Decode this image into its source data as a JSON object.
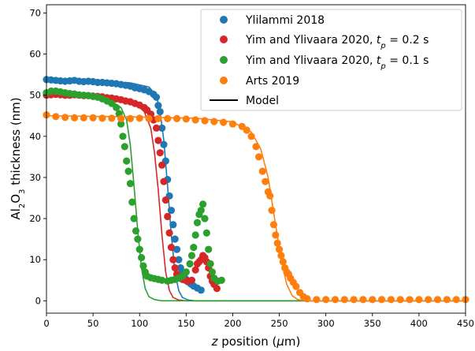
{
  "chart_data": {
    "type": "scatter",
    "x_label_parts": [
      "z",
      " position (",
      "μ",
      "m)"
    ],
    "y_label_parts": [
      "Al",
      "2",
      "O",
      "3",
      " thickness (nm)"
    ],
    "xlim": [
      0,
      450
    ],
    "ylim": [
      -3,
      72
    ],
    "x_ticks": [
      0,
      50,
      100,
      150,
      200,
      250,
      300,
      350,
      400,
      450
    ],
    "y_ticks": [
      0,
      10,
      20,
      30,
      40,
      50,
      60,
      70
    ],
    "grid": false,
    "legend_position": "top-right",
    "legend": [
      {
        "text": "Ylilammi 2018",
        "marker": "dot",
        "color": "#1f77b4"
      },
      {
        "text": "Yim and Ylivaara 2020, ",
        "math_var": "t",
        "math_sub": "p",
        "math_rest": " = 0.2 s",
        "marker": "dot",
        "color": "#d62728"
      },
      {
        "text": "Yim and Ylivaara 2020, ",
        "math_var": "t",
        "math_sub": "p",
        "math_rest": " = 0.1 s",
        "marker": "dot",
        "color": "#2ca02c"
      },
      {
        "text": "Arts 2019",
        "marker": "dot",
        "color": "#ff7f0e"
      },
      {
        "text": "Model",
        "marker": "line",
        "color": "#000000"
      }
    ],
    "series": [
      {
        "name": "Ylilammi 2018",
        "color": "#1f77b4",
        "points": [
          [
            0,
            53.8
          ],
          [
            5,
            53.7
          ],
          [
            10,
            53.6
          ],
          [
            15,
            53.5
          ],
          [
            20,
            53.4
          ],
          [
            25,
            53.5
          ],
          [
            30,
            53.6
          ],
          [
            35,
            53.4
          ],
          [
            40,
            53.3
          ],
          [
            45,
            53.4
          ],
          [
            50,
            53.3
          ],
          [
            55,
            53.1
          ],
          [
            60,
            53.1
          ],
          [
            65,
            53.0
          ],
          [
            70,
            52.9
          ],
          [
            75,
            52.8
          ],
          [
            80,
            52.6
          ],
          [
            85,
            52.4
          ],
          [
            90,
            52.2
          ],
          [
            95,
            51.8
          ],
          [
            100,
            51.6
          ],
          [
            105,
            51.3
          ],
          [
            110,
            50.9
          ],
          [
            115,
            50.2
          ],
          [
            118,
            49.5
          ],
          [
            120,
            47.5
          ],
          [
            122,
            46.0
          ],
          [
            124,
            42.0
          ],
          [
            126,
            38.0
          ],
          [
            128,
            34.0
          ],
          [
            130,
            29.5
          ],
          [
            132,
            25.5
          ],
          [
            134,
            22.0
          ],
          [
            136,
            18.5
          ],
          [
            138,
            15.0
          ],
          [
            140,
            12.5
          ],
          [
            142,
            10.0
          ],
          [
            144,
            8.0
          ],
          [
            146,
            6.8
          ],
          [
            148,
            5.8
          ],
          [
            150,
            5.2
          ],
          [
            152,
            4.6
          ],
          [
            155,
            4.1
          ],
          [
            158,
            3.6
          ],
          [
            162,
            3.1
          ],
          [
            166,
            2.6
          ]
        ],
        "model": [
          [
            0,
            53.8
          ],
          [
            50,
            53.6
          ],
          [
            90,
            53.0
          ],
          [
            110,
            52.0
          ],
          [
            118,
            50.0
          ],
          [
            122,
            46.0
          ],
          [
            126,
            39.0
          ],
          [
            130,
            28.0
          ],
          [
            134,
            16.0
          ],
          [
            138,
            7.0
          ],
          [
            142,
            2.5
          ],
          [
            146,
            0.8
          ],
          [
            152,
            0.2
          ],
          [
            160,
            0
          ],
          [
            450,
            0
          ]
        ]
      },
      {
        "name": "Yim and Ylivaara 2020, tp = 0.2 s",
        "color": "#d62728",
        "points": [
          [
            0,
            50.0
          ],
          [
            5,
            50.1
          ],
          [
            10,
            50.2
          ],
          [
            15,
            50.1
          ],
          [
            20,
            50.0
          ],
          [
            25,
            50.0
          ],
          [
            30,
            50.1
          ],
          [
            35,
            50.0
          ],
          [
            40,
            49.9
          ],
          [
            45,
            49.9
          ],
          [
            50,
            49.8
          ],
          [
            55,
            49.7
          ],
          [
            60,
            49.6
          ],
          [
            65,
            49.4
          ],
          [
            70,
            49.3
          ],
          [
            75,
            49.1
          ],
          [
            80,
            48.9
          ],
          [
            85,
            48.6
          ],
          [
            90,
            48.4
          ],
          [
            95,
            48.0
          ],
          [
            100,
            47.6
          ],
          [
            105,
            47.0
          ],
          [
            108,
            46.4
          ],
          [
            112,
            45.4
          ],
          [
            115,
            44.0
          ],
          [
            118,
            42.0
          ],
          [
            120,
            39.0
          ],
          [
            122,
            36.0
          ],
          [
            124,
            33.0
          ],
          [
            126,
            29.0
          ],
          [
            128,
            24.5
          ],
          [
            130,
            20.5
          ],
          [
            132,
            16.5
          ],
          [
            134,
            13.0
          ],
          [
            136,
            10.0
          ],
          [
            138,
            8.0
          ],
          [
            140,
            6.5
          ],
          [
            143,
            5.6
          ],
          [
            146,
            5.2
          ],
          [
            149,
            5.0
          ],
          [
            152,
            4.8
          ],
          [
            156,
            5.0
          ],
          [
            160,
            7.5
          ],
          [
            162,
            9.0
          ],
          [
            164,
            9.5
          ],
          [
            166,
            10.0
          ],
          [
            168,
            11.0
          ],
          [
            170,
            10.5
          ],
          [
            172,
            9.5
          ],
          [
            174,
            8.0
          ],
          [
            176,
            6.0
          ],
          [
            178,
            4.8
          ],
          [
            180,
            4.0
          ],
          [
            183,
            3.0
          ]
        ],
        "model": [
          [
            0,
            50.2
          ],
          [
            50,
            49.8
          ],
          [
            80,
            49.0
          ],
          [
            95,
            48.0
          ],
          [
            105,
            46.0
          ],
          [
            112,
            42.0
          ],
          [
            116,
            36.0
          ],
          [
            120,
            27.0
          ],
          [
            124,
            16.0
          ],
          [
            128,
            7.0
          ],
          [
            132,
            2.5
          ],
          [
            136,
            0.8
          ],
          [
            142,
            0.2
          ],
          [
            150,
            0
          ],
          [
            450,
            0
          ]
        ]
      },
      {
        "name": "Yim and Ylivaara 2020, tp = 0.1 s",
        "color": "#2ca02c",
        "points": [
          [
            0,
            50.6
          ],
          [
            5,
            51.0
          ],
          [
            10,
            51.0
          ],
          [
            15,
            50.8
          ],
          [
            20,
            50.6
          ],
          [
            25,
            50.4
          ],
          [
            30,
            50.3
          ],
          [
            35,
            50.1
          ],
          [
            40,
            50.0
          ],
          [
            45,
            49.9
          ],
          [
            50,
            49.7
          ],
          [
            55,
            49.5
          ],
          [
            60,
            49.1
          ],
          [
            65,
            48.6
          ],
          [
            70,
            48.0
          ],
          [
            75,
            47.0
          ],
          [
            78,
            45.5
          ],
          [
            80,
            43.0
          ],
          [
            82,
            40.0
          ],
          [
            84,
            37.5
          ],
          [
            86,
            34.0
          ],
          [
            88,
            31.5
          ],
          [
            90,
            28.5
          ],
          [
            92,
            24.0
          ],
          [
            94,
            20.0
          ],
          [
            96,
            17.0
          ],
          [
            98,
            15.0
          ],
          [
            100,
            12.5
          ],
          [
            102,
            10.5
          ],
          [
            104,
            8.5
          ],
          [
            106,
            7.0
          ],
          [
            108,
            6.0
          ],
          [
            112,
            5.6
          ],
          [
            116,
            5.4
          ],
          [
            120,
            5.2
          ],
          [
            124,
            5.0
          ],
          [
            130,
            4.8
          ],
          [
            134,
            5.0
          ],
          [
            138,
            5.2
          ],
          [
            142,
            5.5
          ],
          [
            146,
            6.0
          ],
          [
            150,
            7.0
          ],
          [
            154,
            9.0
          ],
          [
            156,
            11.0
          ],
          [
            158,
            13.0
          ],
          [
            160,
            16.0
          ],
          [
            162,
            19.0
          ],
          [
            164,
            21.0
          ],
          [
            166,
            22.0
          ],
          [
            168,
            23.5
          ],
          [
            170,
            20.0
          ],
          [
            172,
            16.5
          ],
          [
            174,
            12.5
          ],
          [
            176,
            9.0
          ],
          [
            178,
            7.0
          ],
          [
            180,
            5.5
          ],
          [
            184,
            4.8
          ],
          [
            188,
            5.0
          ]
        ],
        "model": [
          [
            0,
            51.0
          ],
          [
            40,
            50.0
          ],
          [
            70,
            48.5
          ],
          [
            80,
            47.0
          ],
          [
            86,
            44.0
          ],
          [
            90,
            38.0
          ],
          [
            94,
            28.0
          ],
          [
            98,
            17.0
          ],
          [
            102,
            8.0
          ],
          [
            106,
            3.0
          ],
          [
            110,
            1.0
          ],
          [
            116,
            0.3
          ],
          [
            124,
            0
          ],
          [
            450,
            0
          ]
        ]
      },
      {
        "name": "Arts 2019",
        "color": "#ff7f0e",
        "points": [
          [
            0,
            45.2
          ],
          [
            10,
            44.8
          ],
          [
            20,
            44.6
          ],
          [
            30,
            44.5
          ],
          [
            40,
            44.5
          ],
          [
            50,
            44.5
          ],
          [
            60,
            44.4
          ],
          [
            70,
            44.4
          ],
          [
            80,
            44.3
          ],
          [
            90,
            44.3
          ],
          [
            100,
            44.4
          ],
          [
            110,
            44.3
          ],
          [
            120,
            44.3
          ],
          [
            130,
            44.3
          ],
          [
            140,
            44.3
          ],
          [
            150,
            44.2
          ],
          [
            160,
            44.0
          ],
          [
            170,
            43.8
          ],
          [
            180,
            43.6
          ],
          [
            190,
            43.4
          ],
          [
            200,
            43.0
          ],
          [
            210,
            42.4
          ],
          [
            215,
            41.5
          ],
          [
            220,
            40.0
          ],
          [
            225,
            37.5
          ],
          [
            228,
            35.0
          ],
          [
            232,
            31.5
          ],
          [
            235,
            29.0
          ],
          [
            238,
            26.5
          ],
          [
            240,
            25.5
          ],
          [
            242,
            22.0
          ],
          [
            244,
            18.5
          ],
          [
            246,
            16.0
          ],
          [
            248,
            14.0
          ],
          [
            250,
            12.5
          ],
          [
            252,
            11.0
          ],
          [
            254,
            9.5
          ],
          [
            256,
            8.0
          ],
          [
            258,
            7.0
          ],
          [
            260,
            6.5
          ],
          [
            262,
            5.5
          ],
          [
            265,
            4.5
          ],
          [
            268,
            3.5
          ],
          [
            272,
            2.0
          ],
          [
            276,
            1.0
          ],
          [
            280,
            0.5
          ],
          [
            290,
            0.3
          ],
          [
            300,
            0.3
          ],
          [
            310,
            0.3
          ],
          [
            320,
            0.3
          ],
          [
            330,
            0.3
          ],
          [
            340,
            0.3
          ],
          [
            350,
            0.3
          ],
          [
            360,
            0.3
          ],
          [
            370,
            0.3
          ],
          [
            380,
            0.3
          ],
          [
            390,
            0.3
          ],
          [
            400,
            0.3
          ],
          [
            410,
            0.3
          ],
          [
            420,
            0.3
          ],
          [
            430,
            0.3
          ],
          [
            440,
            0.3
          ],
          [
            450,
            0.3
          ]
        ],
        "model": [
          [
            0,
            45.0
          ],
          [
            100,
            44.7
          ],
          [
            160,
            44.4
          ],
          [
            200,
            43.5
          ],
          [
            220,
            41.0
          ],
          [
            230,
            37.0
          ],
          [
            238,
            30.0
          ],
          [
            245,
            20.0
          ],
          [
            252,
            10.0
          ],
          [
            258,
            4.0
          ],
          [
            264,
            1.2
          ],
          [
            270,
            0.3
          ],
          [
            280,
            0
          ],
          [
            450,
            0
          ]
        ]
      }
    ]
  }
}
